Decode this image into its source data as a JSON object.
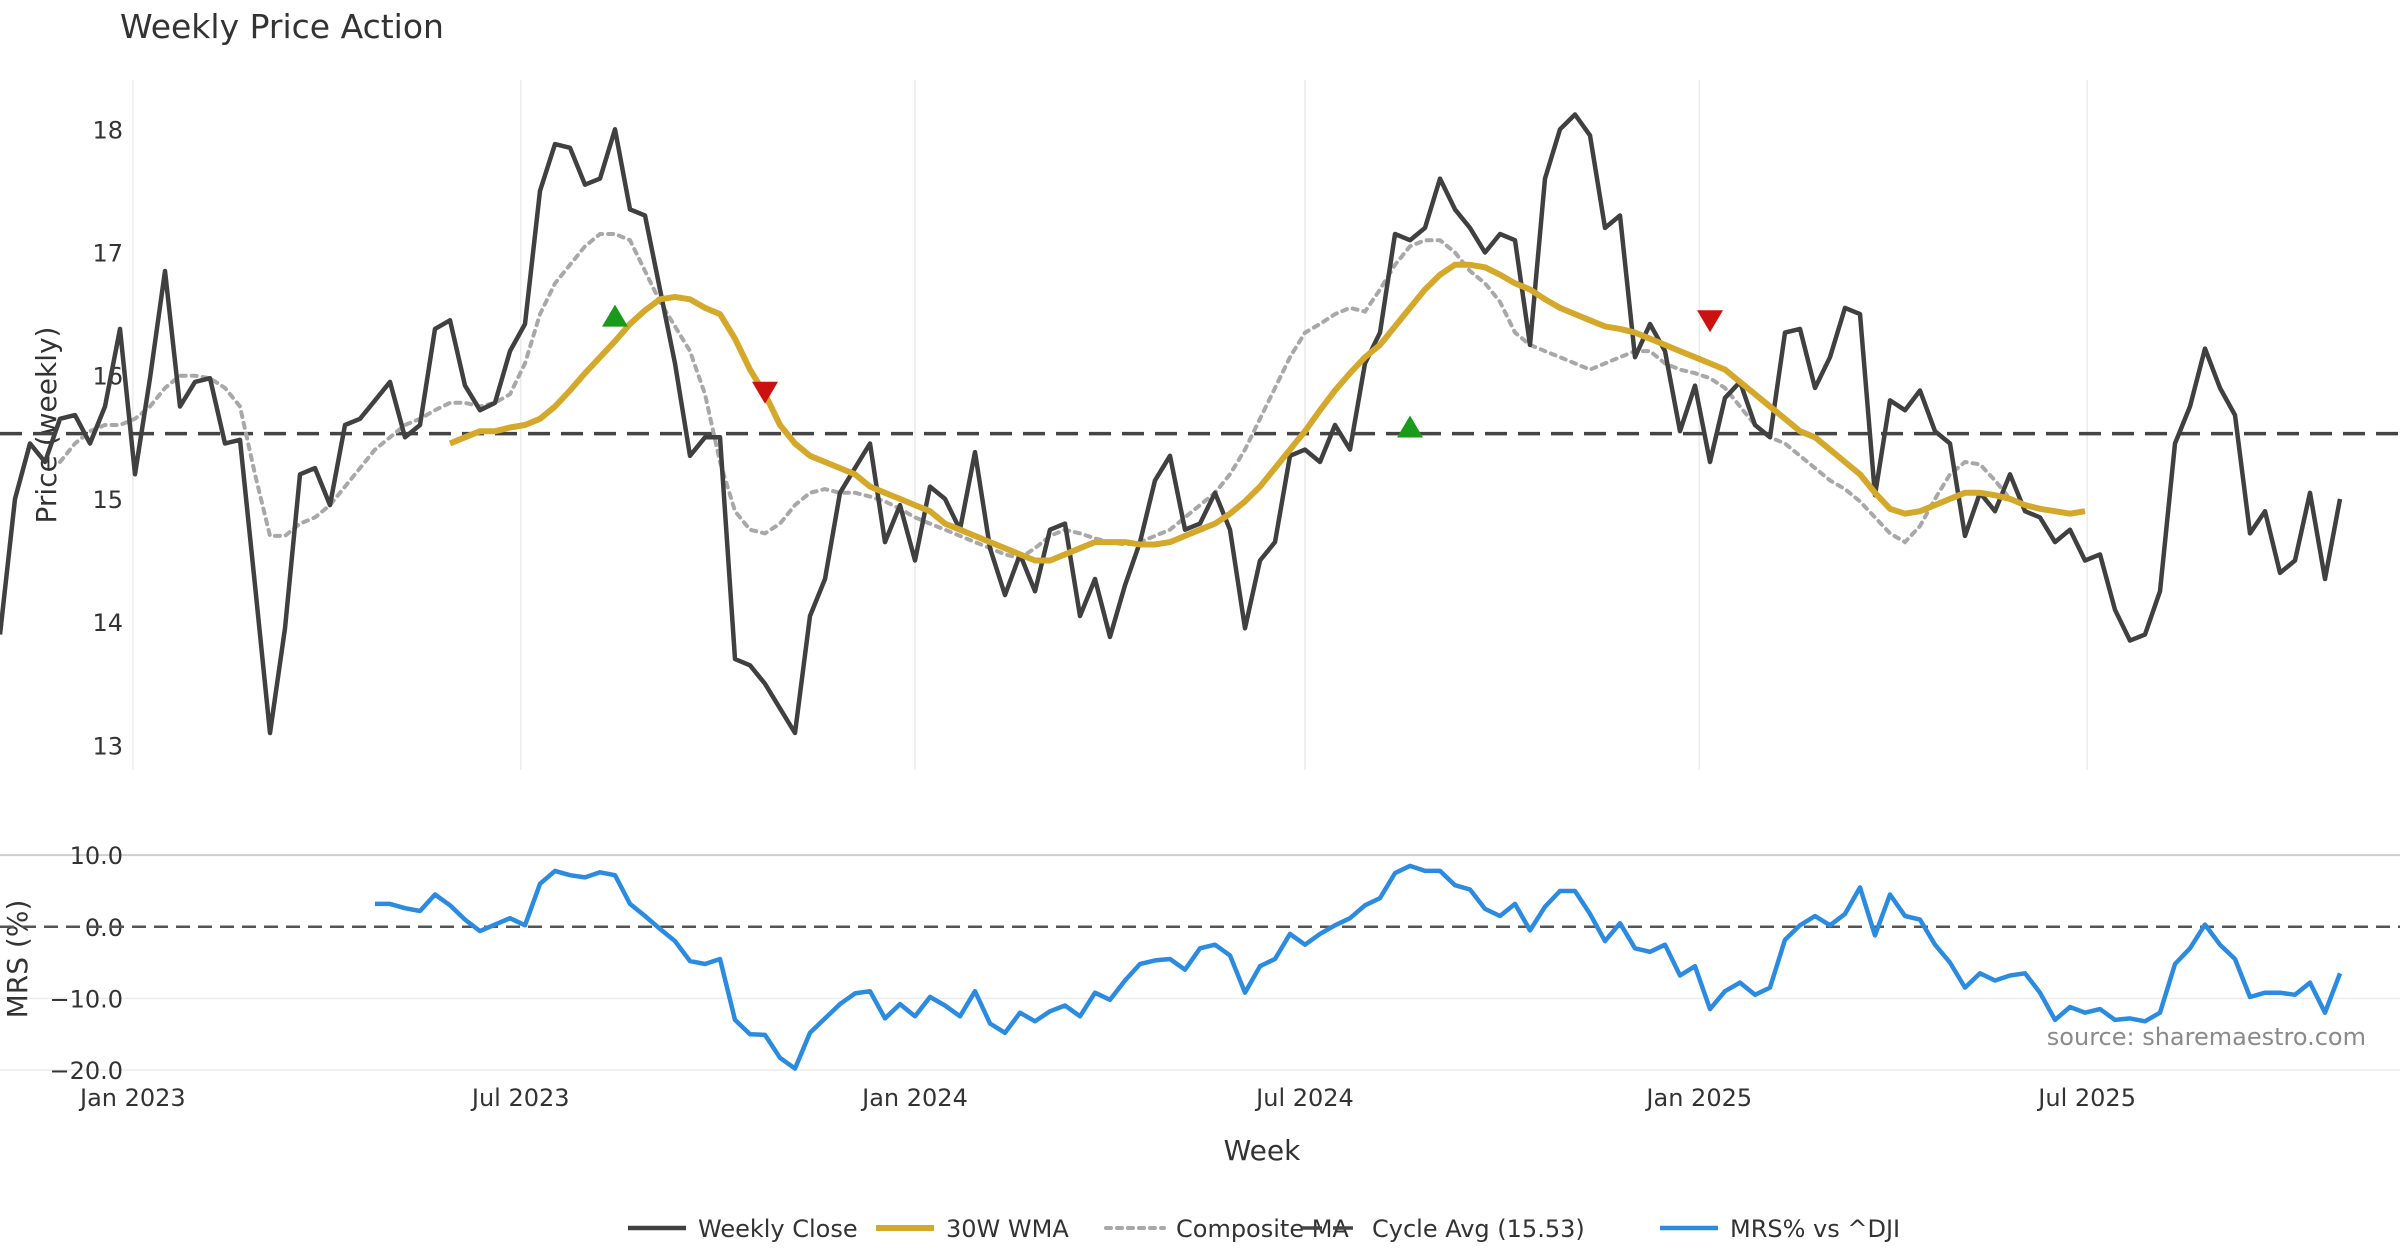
{
  "chart_data": {
    "type": "line",
    "title": "Weekly Price Action",
    "xlabel": "Week",
    "x_ticks": [
      "Jan 2023",
      "Jul 2023",
      "Jan 2024",
      "Jul 2024",
      "Jan 2025",
      "Jul 2025"
    ],
    "x_range": [
      "2022-10-31",
      "2025-11-24"
    ],
    "grid": true,
    "legend_position": "bottom-center",
    "source": "source: sharemaestro.com",
    "colors": {
      "close": "#404040",
      "wma": "#d4a82a",
      "composite": "#a8a8a8",
      "cycle": "#444444",
      "mrs": "#2b8be0",
      "buy": "#1a9a1a",
      "sell": "#cc1111"
    },
    "legend": [
      {
        "key": "close",
        "label": "Weekly Close",
        "style": "solid"
      },
      {
        "key": "wma",
        "label": "30W WMA",
        "style": "solid"
      },
      {
        "key": "composite",
        "label": "Composite MA",
        "style": "dotted"
      },
      {
        "key": "cycle",
        "label": "Cycle Avg (15.53)",
        "style": "dashed"
      },
      {
        "key": "mrs",
        "label": "MRS% vs ^DJI",
        "style": "solid"
      }
    ],
    "price_panel": {
      "ylabel": "Price (weekly)",
      "ylim": [
        12.8,
        18.4
      ],
      "yticks": [
        13,
        14,
        15,
        16,
        17,
        18
      ],
      "cycle_avg": 15.53,
      "series": {
        "close": {
          "name": "Weekly Close",
          "start": "2022-10-31",
          "values": [
            13.9,
            15.0,
            15.45,
            15.3,
            15.65,
            15.68,
            15.45,
            15.75,
            16.38,
            15.2,
            15.98,
            16.85,
            15.75,
            15.95,
            15.98,
            15.45,
            15.48,
            14.3,
            13.1,
            13.95,
            15.2,
            15.25,
            14.95,
            15.6,
            15.65,
            15.8,
            15.95,
            15.5,
            15.6,
            16.38,
            16.45,
            15.92,
            15.72,
            15.78,
            16.2,
            16.42,
            17.5,
            17.88,
            17.85,
            17.55,
            17.6,
            18.0,
            17.35,
            17.3,
            16.7,
            16.1,
            15.35,
            15.5,
            15.5,
            13.7,
            13.65,
            13.5,
            13.3,
            13.1,
            14.05,
            14.35,
            15.05,
            15.25,
            15.45,
            14.65,
            14.95,
            14.5,
            15.1,
            15.0,
            14.75,
            15.38,
            14.6,
            14.22,
            14.55,
            14.25,
            14.75,
            14.8,
            14.05,
            14.35,
            13.88,
            14.3,
            14.65,
            15.15,
            15.35,
            14.75,
            14.8,
            15.05,
            14.75,
            13.95,
            14.5,
            14.65,
            15.35,
            15.4,
            15.3,
            15.6,
            15.4,
            16.1,
            16.35,
            17.15,
            17.1,
            17.2,
            17.6,
            17.35,
            17.2,
            17.0,
            17.15,
            17.1,
            16.25,
            17.6,
            18.0,
            18.12,
            17.95,
            17.2,
            17.3,
            16.15,
            16.42,
            16.2,
            15.55,
            15.92,
            15.3,
            15.82,
            15.95,
            15.6,
            15.5,
            16.35,
            16.38,
            15.9,
            16.15,
            16.55,
            16.5,
            15.03,
            15.8,
            15.72,
            15.88,
            15.55,
            15.45,
            14.7,
            15.05,
            14.9,
            15.2,
            14.9,
            14.85,
            14.65,
            14.75,
            14.5,
            14.55,
            14.1,
            13.85,
            13.9,
            14.25,
            15.45,
            15.75,
            16.22,
            15.9,
            15.68,
            14.72,
            14.9,
            14.4,
            14.5,
            15.05,
            14.35,
            15.0
          ]
        },
        "wma": {
          "name": "30W WMA",
          "start": "2023-05-29",
          "values": [
            15.45,
            15.5,
            15.55,
            15.55,
            15.58,
            15.6,
            15.65,
            15.75,
            15.88,
            16.02,
            16.15,
            16.28,
            16.42,
            16.53,
            16.62,
            16.64,
            16.62,
            16.55,
            16.5,
            16.3,
            16.05,
            15.85,
            15.6,
            15.45,
            15.35,
            15.3,
            15.25,
            15.2,
            15.1,
            15.05,
            15.0,
            14.95,
            14.9,
            14.8,
            14.75,
            14.7,
            14.65,
            14.6,
            14.55,
            14.5,
            14.5,
            14.55,
            14.6,
            14.65,
            14.65,
            14.65,
            14.63,
            14.63,
            14.65,
            14.7,
            14.75,
            14.8,
            14.88,
            14.98,
            15.1,
            15.25,
            15.4,
            15.55,
            15.72,
            15.88,
            16.02,
            16.15,
            16.25,
            16.4,
            16.55,
            16.7,
            16.82,
            16.9,
            16.9,
            16.88,
            16.82,
            16.75,
            16.7,
            16.62,
            16.55,
            16.5,
            16.45,
            16.4,
            16.38,
            16.35,
            16.3,
            16.25,
            16.2,
            16.15,
            16.1,
            16.05,
            15.95,
            15.85,
            15.75,
            15.65,
            15.55,
            15.5,
            15.4,
            15.3,
            15.2,
            15.05,
            14.92,
            14.88,
            14.9,
            14.95,
            15.0,
            15.05,
            15.05,
            15.03,
            15.0,
            14.95,
            14.92,
            14.9,
            14.88,
            14.9
          ]
        },
        "composite": {
          "name": "Composite MA",
          "start": "2022-11-28",
          "values": [
            15.3,
            15.45,
            15.55,
            15.6,
            15.6,
            15.65,
            15.75,
            15.9,
            16.0,
            16.0,
            15.98,
            15.9,
            15.75,
            15.2,
            14.7,
            14.7,
            14.8,
            14.85,
            14.95,
            15.1,
            15.25,
            15.4,
            15.5,
            15.6,
            15.65,
            15.72,
            15.78,
            15.78,
            15.75,
            15.78,
            15.85,
            16.1,
            16.5,
            16.75,
            16.9,
            17.05,
            17.15,
            17.15,
            17.1,
            16.85,
            16.6,
            16.4,
            16.2,
            15.85,
            15.3,
            14.9,
            14.75,
            14.72,
            14.8,
            14.95,
            15.05,
            15.08,
            15.05,
            15.05,
            15.02,
            14.98,
            14.92,
            14.85,
            14.8,
            14.75,
            14.7,
            14.65,
            14.6,
            14.55,
            14.52,
            14.6,
            14.7,
            14.75,
            14.72,
            14.68,
            14.65,
            14.63,
            14.65,
            14.7,
            14.75,
            14.85,
            14.95,
            15.05,
            15.2,
            15.4,
            15.65,
            15.9,
            16.15,
            16.35,
            16.42,
            16.5,
            16.55,
            16.52,
            16.7,
            16.9,
            17.05,
            17.1,
            17.1,
            17.0,
            16.85,
            16.75,
            16.6,
            16.35,
            16.25,
            16.2,
            16.15,
            16.1,
            16.05,
            16.1,
            16.15,
            16.2,
            16.2,
            16.1,
            16.05,
            16.02,
            15.98,
            15.9,
            15.75,
            15.6,
            15.5,
            15.45,
            15.35,
            15.25,
            15.15,
            15.08,
            14.98,
            14.85,
            14.72,
            14.65,
            14.78,
            15.0,
            15.2,
            15.3,
            15.28,
            15.15,
            15.0,
            14.95,
            14.92
          ]
        }
      },
      "signals": [
        {
          "date": "2023-08-14",
          "value": 16.48,
          "type": "buy"
        },
        {
          "date": "2023-10-23",
          "value": 15.87,
          "type": "sell"
        },
        {
          "date": "2024-08-19",
          "value": 15.58,
          "type": "buy"
        },
        {
          "date": "2025-01-06",
          "value": 16.45,
          "type": "sell"
        }
      ]
    },
    "mrs_panel": {
      "ylabel": "MRS (%)",
      "ylim": [
        -20.0,
        11.0
      ],
      "yticks": [
        "10.0",
        "0.0",
        "−10.0",
        "−20.0"
      ],
      "ytick_values": [
        10,
        0,
        -10,
        -20
      ],
      "series": {
        "mrs": {
          "name": "MRS% vs ^DJI",
          "start": "2023-04-24",
          "values": [
            3.2,
            3.2,
            2.6,
            2.2,
            4.5,
            3.0,
            1.0,
            -0.6,
            0.3,
            1.2,
            0.2,
            6.0,
            7.8,
            7.2,
            6.9,
            7.6,
            7.2,
            3.2,
            1.5,
            -0.3,
            -2.0,
            -4.8,
            -5.2,
            -4.5,
            -13.0,
            -15.0,
            -15.1,
            -18.3,
            -19.8,
            -14.8,
            -12.8,
            -10.8,
            -9.3,
            -9.0,
            -12.8,
            -10.8,
            -12.5,
            -9.8,
            -11.0,
            -12.5,
            -9.0,
            -13.5,
            -14.8,
            -12.0,
            -13.2,
            -11.8,
            -11.0,
            -12.5,
            -9.2,
            -10.2,
            -7.5,
            -5.2,
            -4.7,
            -4.5,
            -6.0,
            -3.0,
            -2.5,
            -4.0,
            -9.2,
            -5.5,
            -4.5,
            -1.0,
            -2.5,
            -1.0,
            0.2,
            1.2,
            3.0,
            4.0,
            7.5,
            8.5,
            7.8,
            7.8,
            5.8,
            5.2,
            2.5,
            1.5,
            3.2,
            -0.5,
            2.8,
            5.0,
            5.0,
            1.8,
            -2.0,
            0.5,
            -3.0,
            -3.5,
            -2.5,
            -6.8,
            -5.5,
            -11.5,
            -9.0,
            -7.8,
            -9.5,
            -8.5,
            -1.8,
            0.2,
            1.5,
            0.2,
            1.8,
            5.5,
            -1.2,
            4.5,
            1.5,
            1.0,
            -2.5,
            -5.0,
            -8.5,
            -6.5,
            -7.5,
            -6.8,
            -6.5,
            -9.2,
            -13.0,
            -11.2,
            -12.0,
            -11.5,
            -13.0,
            -12.8,
            -13.2,
            -12.0,
            -5.2,
            -3.0,
            0.3,
            -2.5,
            -4.5,
            -9.8,
            -9.2,
            -9.2,
            -9.5,
            -7.8,
            -12.0,
            -6.5
          ]
        }
      }
    }
  }
}
